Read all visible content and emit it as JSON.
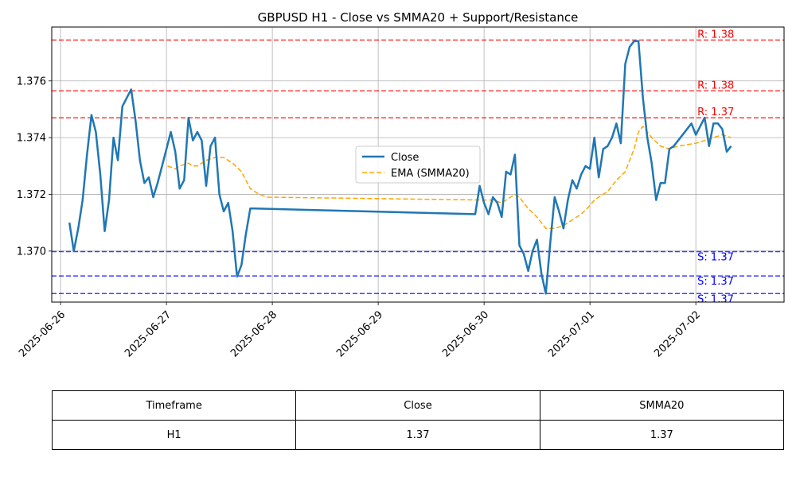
{
  "chart_data": {
    "type": "line",
    "title": "GBPUSD H1 - Close vs SMMA20 + Support/Resistance",
    "xlabel": "",
    "ylabel": "",
    "x_range": [
      "2025-06-25T22:00",
      "2025-07-02T20:00"
    ],
    "ylim": [
      1.3682,
      1.3779
    ],
    "x_ticks": [
      "2025-06-26",
      "2025-06-27",
      "2025-06-28",
      "2025-06-29",
      "2025-06-30",
      "2025-07-01",
      "2025-07-02"
    ],
    "y_ticks": [
      "1.370",
      "1.372",
      "1.374",
      "1.376"
    ],
    "grid": true,
    "legend": {
      "position": "center",
      "entries": [
        "Close",
        "EMA (SMMA20)"
      ]
    },
    "colors": {
      "close": "#1f77b4",
      "ema": "#ffa500",
      "resistance": "#ff0000",
      "support": "#0000ff"
    },
    "series": [
      {
        "name": "Close",
        "style": "solid",
        "points": [
          [
            "2025-06-26T02:00",
            1.371
          ],
          [
            "2025-06-26T03:00",
            1.37
          ],
          [
            "2025-06-26T04:00",
            1.3708
          ],
          [
            "2025-06-26T05:00",
            1.3718
          ],
          [
            "2025-06-26T06:00",
            1.3734
          ],
          [
            "2025-06-26T07:00",
            1.3748
          ],
          [
            "2025-06-26T08:00",
            1.3742
          ],
          [
            "2025-06-26T09:00",
            1.3727
          ],
          [
            "2025-06-26T10:00",
            1.3707
          ],
          [
            "2025-06-26T11:00",
            1.3718
          ],
          [
            "2025-06-26T12:00",
            1.374
          ],
          [
            "2025-06-26T13:00",
            1.3732
          ],
          [
            "2025-06-26T14:00",
            1.3751
          ],
          [
            "2025-06-26T15:00",
            1.3754
          ],
          [
            "2025-06-26T16:00",
            1.3757
          ],
          [
            "2025-06-26T17:00",
            1.3746
          ],
          [
            "2025-06-26T18:00",
            1.3732
          ],
          [
            "2025-06-26T19:00",
            1.3724
          ],
          [
            "2025-06-26T20:00",
            1.3726
          ],
          [
            "2025-06-26T21:00",
            1.3719
          ],
          [
            "2025-06-26T22:00",
            1.3724
          ],
          [
            "2025-06-26T23:00",
            1.373
          ],
          [
            "2025-06-27T00:00",
            1.3736
          ],
          [
            "2025-06-27T01:00",
            1.3742
          ],
          [
            "2025-06-27T02:00",
            1.3735
          ],
          [
            "2025-06-27T03:00",
            1.3722
          ],
          [
            "2025-06-27T04:00",
            1.3725
          ],
          [
            "2025-06-27T05:00",
            1.3747
          ],
          [
            "2025-06-27T06:00",
            1.3739
          ],
          [
            "2025-06-27T07:00",
            1.3742
          ],
          [
            "2025-06-27T08:00",
            1.3739
          ],
          [
            "2025-06-27T09:00",
            1.3723
          ],
          [
            "2025-06-27T10:00",
            1.3737
          ],
          [
            "2025-06-27T11:00",
            1.374
          ],
          [
            "2025-06-27T12:00",
            1.372
          ],
          [
            "2025-06-27T13:00",
            1.3714
          ],
          [
            "2025-06-27T14:00",
            1.3717
          ],
          [
            "2025-06-27T15:00",
            1.3707
          ],
          [
            "2025-06-27T16:00",
            1.3691
          ],
          [
            "2025-06-27T17:00",
            1.3695
          ],
          [
            "2025-06-27T18:00",
            1.3706
          ],
          [
            "2025-06-27T19:00",
            1.3715
          ],
          [
            "2025-06-27T20:00",
            1.3715
          ],
          [
            "2025-06-29T22:00",
            1.3713
          ],
          [
            "2025-06-29T23:00",
            1.3723
          ],
          [
            "2025-06-30T00:00",
            1.3717
          ],
          [
            "2025-06-30T01:00",
            1.3713
          ],
          [
            "2025-06-30T02:00",
            1.3719
          ],
          [
            "2025-06-30T03:00",
            1.3717
          ],
          [
            "2025-06-30T04:00",
            1.3712
          ],
          [
            "2025-06-30T05:00",
            1.3728
          ],
          [
            "2025-06-30T06:00",
            1.3727
          ],
          [
            "2025-06-30T07:00",
            1.3734
          ],
          [
            "2025-06-30T08:00",
            1.3702
          ],
          [
            "2025-06-30T09:00",
            1.3699
          ],
          [
            "2025-06-30T10:00",
            1.3693
          ],
          [
            "2025-06-30T11:00",
            1.37
          ],
          [
            "2025-06-30T12:00",
            1.3704
          ],
          [
            "2025-06-30T13:00",
            1.3692
          ],
          [
            "2025-06-30T14:00",
            1.3685
          ],
          [
            "2025-06-30T15:00",
            1.3703
          ],
          [
            "2025-06-30T16:00",
            1.3719
          ],
          [
            "2025-06-30T17:00",
            1.3714
          ],
          [
            "2025-06-30T18:00",
            1.3708
          ],
          [
            "2025-06-30T19:00",
            1.3718
          ],
          [
            "2025-06-30T20:00",
            1.3725
          ],
          [
            "2025-06-30T21:00",
            1.3722
          ],
          [
            "2025-06-30T22:00",
            1.3727
          ],
          [
            "2025-06-30T23:00",
            1.373
          ],
          [
            "2025-07-01T00:00",
            1.3729
          ],
          [
            "2025-07-01T01:00",
            1.374
          ],
          [
            "2025-07-01T02:00",
            1.3726
          ],
          [
            "2025-07-01T03:00",
            1.3736
          ],
          [
            "2025-07-01T04:00",
            1.3737
          ],
          [
            "2025-07-01T05:00",
            1.374
          ],
          [
            "2025-07-01T06:00",
            1.3745
          ],
          [
            "2025-07-01T07:00",
            1.3738
          ],
          [
            "2025-07-01T08:00",
            1.3766
          ],
          [
            "2025-07-01T09:00",
            1.3772
          ],
          [
            "2025-07-01T10:00",
            1.3774
          ],
          [
            "2025-07-01T11:00",
            1.3774
          ],
          [
            "2025-07-01T12:00",
            1.3754
          ],
          [
            "2025-07-01T13:00",
            1.374
          ],
          [
            "2025-07-01T14:00",
            1.3731
          ],
          [
            "2025-07-01T15:00",
            1.3718
          ],
          [
            "2025-07-01T16:00",
            1.3724
          ],
          [
            "2025-07-01T17:00",
            1.3724
          ],
          [
            "2025-07-01T18:00",
            1.3736
          ],
          [
            "2025-07-01T19:00",
            1.3737
          ],
          [
            "2025-07-01T20:00",
            1.3739
          ],
          [
            "2025-07-01T23:00",
            1.3745
          ],
          [
            "2025-07-02T00:00",
            1.3741
          ],
          [
            "2025-07-02T01:00",
            1.3744
          ],
          [
            "2025-07-02T02:00",
            1.3747
          ],
          [
            "2025-07-02T03:00",
            1.3737
          ],
          [
            "2025-07-02T04:00",
            1.3745
          ],
          [
            "2025-07-02T05:00",
            1.3745
          ],
          [
            "2025-07-02T06:00",
            1.3743
          ],
          [
            "2025-07-02T07:00",
            1.3735
          ],
          [
            "2025-07-02T08:00",
            1.3737
          ]
        ]
      },
      {
        "name": "EMA (SMMA20)",
        "style": "dashed",
        "points": [
          [
            "2025-06-27T00:15",
            1.373
          ],
          [
            "2025-06-27T02:00",
            1.3729
          ],
          [
            "2025-06-27T03:00",
            1.373
          ],
          [
            "2025-06-27T05:00",
            1.3731
          ],
          [
            "2025-06-27T06:00",
            1.373
          ],
          [
            "2025-06-27T07:00",
            1.373
          ],
          [
            "2025-06-27T09:00",
            1.3732
          ],
          [
            "2025-06-27T11:00",
            1.3733
          ],
          [
            "2025-06-27T13:00",
            1.3733
          ],
          [
            "2025-06-27T15:00",
            1.3731
          ],
          [
            "2025-06-27T17:00",
            1.3728
          ],
          [
            "2025-06-27T19:00",
            1.3722
          ],
          [
            "2025-06-27T21:00",
            1.372
          ],
          [
            "2025-06-27T23:00",
            1.3719
          ],
          [
            "2025-06-30T00:00",
            1.3718
          ],
          [
            "2025-06-30T02:00",
            1.3718
          ],
          [
            "2025-06-30T04:00",
            1.3717
          ],
          [
            "2025-06-30T06:00",
            1.3719
          ],
          [
            "2025-06-30T07:00",
            1.372
          ],
          [
            "2025-06-30T08:00",
            1.3719
          ],
          [
            "2025-06-30T09:00",
            1.3717
          ],
          [
            "2025-06-30T10:00",
            1.3715
          ],
          [
            "2025-06-30T12:00",
            1.3712
          ],
          [
            "2025-06-30T14:00",
            1.3708
          ],
          [
            "2025-06-30T16:00",
            1.3708
          ],
          [
            "2025-06-30T18:00",
            1.3709
          ],
          [
            "2025-06-30T20:00",
            1.3711
          ],
          [
            "2025-06-30T22:00",
            1.3713
          ],
          [
            "2025-07-01T00:00",
            1.3716
          ],
          [
            "2025-07-01T01:00",
            1.3718
          ],
          [
            "2025-07-01T02:00",
            1.3719
          ],
          [
            "2025-07-01T04:00",
            1.3721
          ],
          [
            "2025-07-01T06:00",
            1.3725
          ],
          [
            "2025-07-01T08:00",
            1.3728
          ],
          [
            "2025-07-01T10:00",
            1.3736
          ],
          [
            "2025-07-01T11:00",
            1.3742
          ],
          [
            "2025-07-01T12:00",
            1.3744
          ],
          [
            "2025-07-01T13:00",
            1.3742
          ],
          [
            "2025-07-01T14:00",
            1.374
          ],
          [
            "2025-07-01T16:00",
            1.3737
          ],
          [
            "2025-07-01T18:00",
            1.3736
          ],
          [
            "2025-07-01T20:00",
            1.3737
          ],
          [
            "2025-07-02T00:00",
            1.3738
          ],
          [
            "2025-07-02T02:00",
            1.3739
          ],
          [
            "2025-07-02T04:00",
            1.374
          ],
          [
            "2025-07-02T06:00",
            1.3741
          ],
          [
            "2025-07-02T08:00",
            1.374
          ]
        ]
      }
    ],
    "resistance_levels": [
      {
        "value": 1.37744,
        "label": "R: 1.38"
      },
      {
        "value": 1.37565,
        "label": "R: 1.38"
      },
      {
        "value": 1.3747,
        "label": "R: 1.37"
      }
    ],
    "support_levels": [
      {
        "value": 1.36998,
        "label": "S: 1.37"
      },
      {
        "value": 1.36912,
        "label": "S: 1.37"
      },
      {
        "value": 1.3685,
        "label": "S: 1.37"
      }
    ]
  },
  "table": {
    "headers": [
      "Timeframe",
      "Close",
      "SMMA20"
    ],
    "rows": [
      [
        "H1",
        "1.37",
        "1.37"
      ]
    ]
  }
}
